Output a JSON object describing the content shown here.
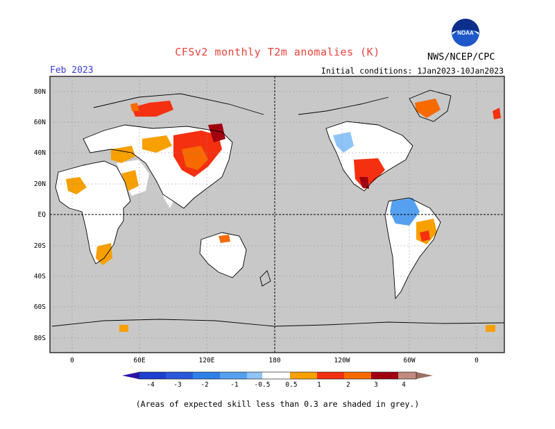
{
  "header": {
    "title": "CFSv2 monthly T2m anomalies (K)",
    "month": "Feb 2023",
    "initial_conditions": "Initial conditions: 1Jan2023-10Jan2023",
    "agency": "NWS/NCEP/CPC",
    "logo_text": "NOAA"
  },
  "map": {
    "lat_labels": [
      "80N",
      "60N",
      "40N",
      "20N",
      "EQ",
      "20S",
      "40S",
      "60S",
      "80S"
    ],
    "lon_labels": [
      "0",
      "60E",
      "120E",
      "180",
      "120W",
      "60W",
      "0"
    ],
    "grey_color": "#c8c8c8",
    "land_white": "#ffffff"
  },
  "colorbar": {
    "labels": [
      "-4",
      "-3",
      "-2",
      "-1",
      "-0.5",
      "0.5",
      "1",
      "2",
      "3",
      "4"
    ],
    "colors": [
      "#2e12a8",
      "#1f3fd0",
      "#2f7fe8",
      "#55a0f0",
      "#8fc4f6",
      "#ffffff",
      "#f7a000",
      "#f76a00",
      "#f43010",
      "#a00010",
      "#bf8a80",
      "#9b7060"
    ]
  },
  "footnote": "(Areas of expected skill less than 0.3 are shaded in grey.)"
}
